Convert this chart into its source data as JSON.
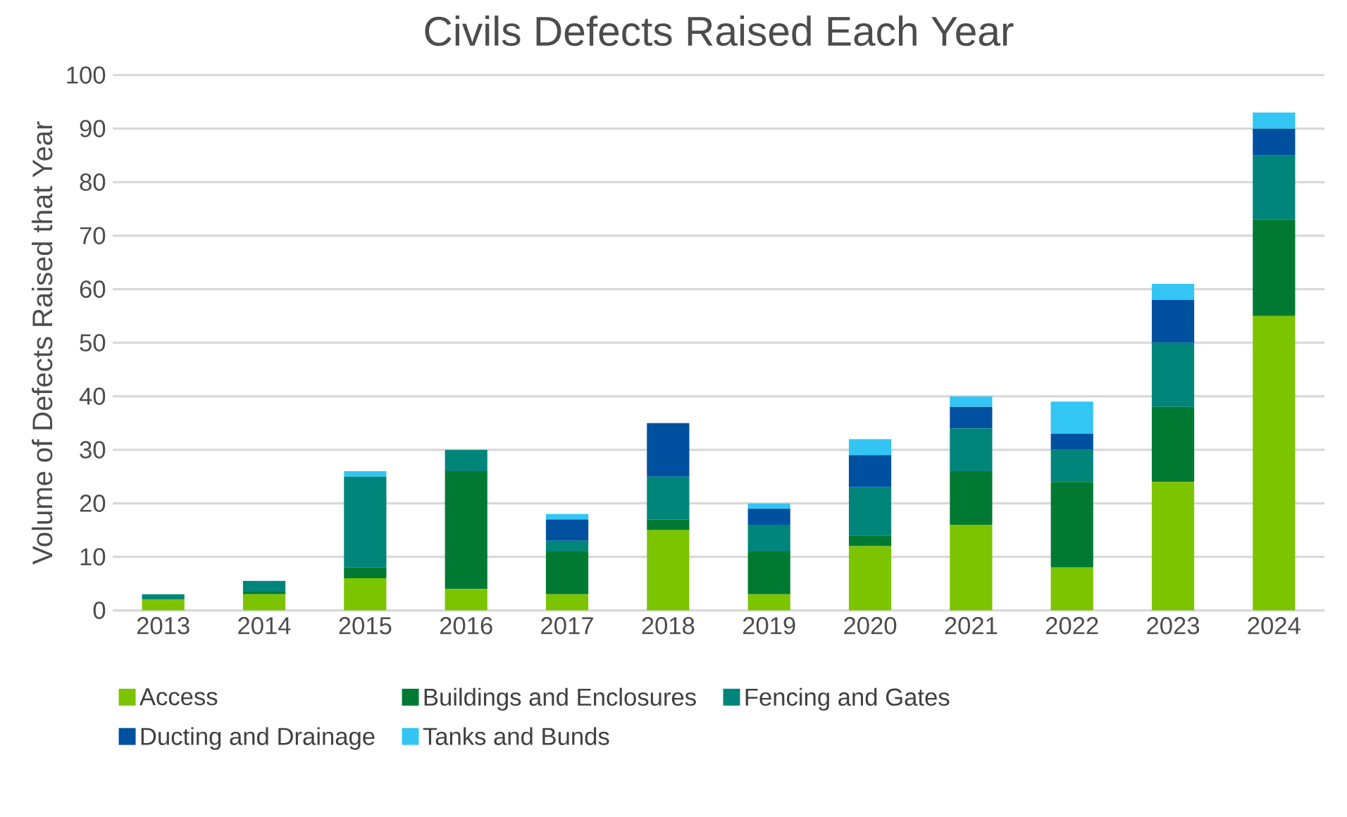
{
  "chart_data": {
    "type": "bar",
    "stacked": true,
    "title": "Civils Defects Raised Each Year",
    "ylabel": "Volume of Defects Raised that Year",
    "categories": [
      "2013",
      "2014",
      "2015",
      "2016",
      "2017",
      "2018",
      "2019",
      "2020",
      "2021",
      "2022",
      "2023",
      "2024"
    ],
    "series": [
      {
        "name": "Access",
        "color": "#7dc400",
        "values": [
          2,
          3,
          6,
          4,
          3,
          15,
          3,
          12,
          16,
          8,
          24,
          55
        ]
      },
      {
        "name": "Buildings and Enclosures",
        "color": "#007a33",
        "values": [
          0,
          0.5,
          2,
          22,
          8,
          2,
          8,
          2,
          10,
          16,
          14,
          18
        ]
      },
      {
        "name": "Fencing and Gates",
        "color": "#00857a",
        "values": [
          1,
          2,
          17,
          4,
          2,
          8,
          5,
          9,
          8,
          6,
          12,
          12
        ]
      },
      {
        "name": "Ducting and Drainage",
        "color": "#0050a0",
        "values": [
          0,
          0,
          0,
          0,
          4,
          10,
          3,
          6,
          4,
          3,
          8,
          5
        ]
      },
      {
        "name": "Tanks and Bunds",
        "color": "#33c5f3",
        "values": [
          0,
          0,
          1,
          0,
          1,
          0,
          1,
          3,
          2,
          6,
          3,
          3
        ]
      }
    ],
    "ylim": [
      0,
      100
    ],
    "yticks": [
      0,
      10,
      20,
      30,
      40,
      50,
      60,
      70,
      80,
      90,
      100
    ],
    "grid": "y",
    "legend": "bottom"
  }
}
